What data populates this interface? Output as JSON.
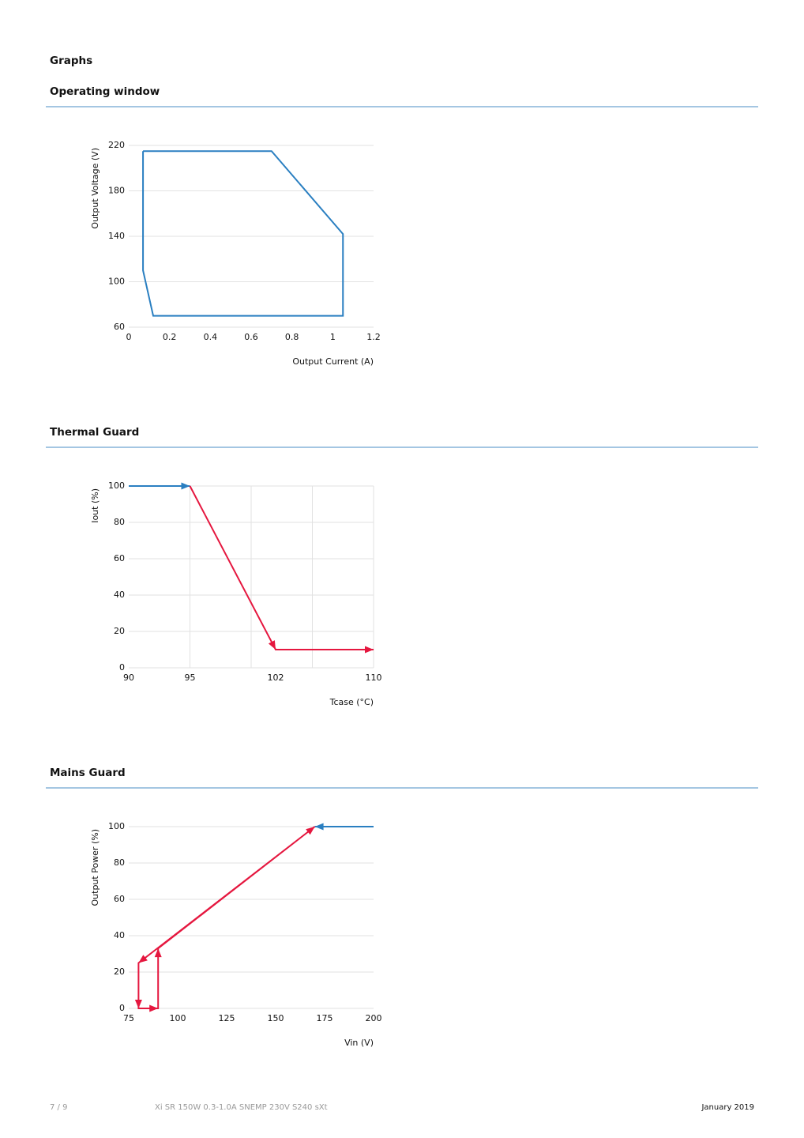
{
  "heading": "Graphs",
  "chart_data": [
    {
      "type": "line",
      "title": "Operating window",
      "xlabel": "Output Current (A)",
      "ylabel": "Output Voltage (V)",
      "xlim": [
        0,
        1.2
      ],
      "xticks": [
        0,
        0.2,
        0.4,
        0.6,
        0.8,
        1,
        1.2
      ],
      "ylim": [
        60,
        220
      ],
      "yticks": [
        60,
        100,
        140,
        180,
        220
      ],
      "grid": true,
      "arrows": false,
      "series": [
        {
          "color": "#2a7fc1",
          "x": [
            0.07,
            0.7,
            1.05,
            1.05,
            0.12,
            0.07,
            0.07
          ],
          "values": [
            215,
            215,
            142,
            70,
            70,
            110,
            215
          ]
        }
      ]
    },
    {
      "type": "line",
      "title": "Thermal Guard",
      "xlabel": "Tcase (°C)",
      "ylabel": "Iout (%)",
      "xlim": [
        90,
        110
      ],
      "xticks": [
        90,
        95,
        102,
        110
      ],
      "x_gridlines": [
        95,
        100,
        105,
        110
      ],
      "ylim": [
        0,
        100
      ],
      "yticks": [
        0,
        20,
        40,
        60,
        80,
        100
      ],
      "grid": true,
      "arrows": true,
      "series": [
        {
          "color": "#2a7fc1",
          "x": [
            90,
            95
          ],
          "values": [
            100,
            100
          ]
        },
        {
          "color": "#e5173f",
          "x": [
            95,
            102,
            110
          ],
          "values": [
            100,
            10,
            10
          ]
        }
      ]
    },
    {
      "type": "line",
      "title": "Mains Guard",
      "xlabel": "Vin (V)",
      "ylabel": "Output Power (%)",
      "xlim": [
        75,
        200
      ],
      "xticks": [
        75,
        100,
        125,
        150,
        175,
        200
      ],
      "ylim": [
        0,
        100
      ],
      "yticks": [
        0,
        20,
        40,
        60,
        80,
        100
      ],
      "grid": true,
      "arrows": true,
      "series": [
        {
          "color": "#2a7fc1",
          "x": [
            200,
            170
          ],
          "values": [
            100,
            100
          ]
        },
        {
          "color": "#e5173f",
          "x": [
            170,
            80,
            80,
            90,
            90,
            170
          ],
          "values": [
            100,
            25,
            0,
            0,
            33,
            100
          ]
        }
      ]
    }
  ],
  "footer": {
    "page": "7 / 9",
    "product": "Xi SR 150W 0.3-1.0A SNEMP 230V S240 sXt",
    "date": "January 2019"
  }
}
